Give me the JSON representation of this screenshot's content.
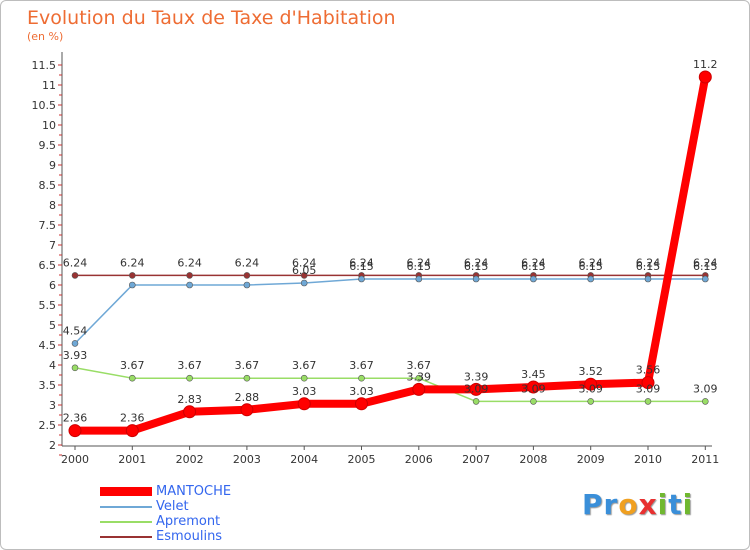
{
  "chart_data": {
    "type": "line",
    "title": "Evolution du Taux de Taxe d'Habitation",
    "ylabel": "(en %)",
    "x": [
      "2000",
      "2001",
      "2002",
      "2003",
      "2004",
      "2005",
      "2006",
      "2007",
      "2008",
      "2009",
      "2010",
      "2011"
    ],
    "yticks": [
      "2",
      "2.5",
      "3",
      "3.5",
      "4",
      "4.5",
      "5",
      "5.5",
      "6",
      "6.5",
      "7",
      "7.5",
      "8",
      "8.5",
      "9",
      "9.5",
      "10",
      "10.5",
      "11",
      "11.5"
    ],
    "ylim": [
      2,
      11.9
    ],
    "grid": false,
    "legend_position": "bottom-left",
    "series": [
      {
        "name": "MANTOCHE",
        "color": "#ff0000",
        "values": [
          2.36,
          2.36,
          2.83,
          2.88,
          3.03,
          3.03,
          3.39,
          3.39,
          3.45,
          3.52,
          3.56,
          11.2
        ],
        "labels": [
          "2.36",
          "2.36",
          "2.83",
          "2.88",
          "3.03",
          "3.03",
          "3.39",
          "3.39",
          "3.45",
          "3.52",
          "3.56",
          "11.2"
        ]
      },
      {
        "name": "Velet",
        "color": "#6fa8d6",
        "values": [
          4.54,
          6.0,
          6.0,
          6.0,
          6.05,
          6.15,
          6.15,
          6.15,
          6.15,
          6.15,
          6.15,
          6.15
        ],
        "labels": [
          "4.54",
          "",
          "",
          "",
          "6.05",
          "6.15",
          "6.15",
          "6.15",
          "6.15",
          "6.15",
          "6.15",
          "6.15"
        ]
      },
      {
        "name": "Apremont",
        "color": "#99dd66",
        "values": [
          3.93,
          3.67,
          3.67,
          3.67,
          3.67,
          3.67,
          3.67,
          3.09,
          3.09,
          3.09,
          3.09,
          3.09
        ],
        "labels": [
          "3.93",
          "3.67",
          "3.67",
          "3.67",
          "3.67",
          "3.67",
          "3.67",
          "3.09",
          "3.09",
          "3.09",
          "3.09",
          "3.09"
        ]
      },
      {
        "name": "Esmoulins",
        "color": "#993333",
        "values": [
          6.24,
          6.24,
          6.24,
          6.24,
          6.24,
          6.24,
          6.24,
          6.24,
          6.24,
          6.24,
          6.24,
          6.24
        ],
        "labels": [
          "6.24",
          "6.24",
          "6.24",
          "6.24",
          "6.24",
          "6.24",
          "6.24",
          "6.24",
          "6.24",
          "6.24",
          "6.24",
          "6.24"
        ]
      }
    ]
  },
  "logo": {
    "text": "Proxiti",
    "letters": [
      "P",
      "r",
      "o",
      "x",
      "i",
      "t",
      "i"
    ],
    "colors": [
      "#3a8fd9",
      "#3a8fd9",
      "#f0a020",
      "#e83030",
      "#70b830",
      "#3a8fd9",
      "#70b830"
    ]
  }
}
